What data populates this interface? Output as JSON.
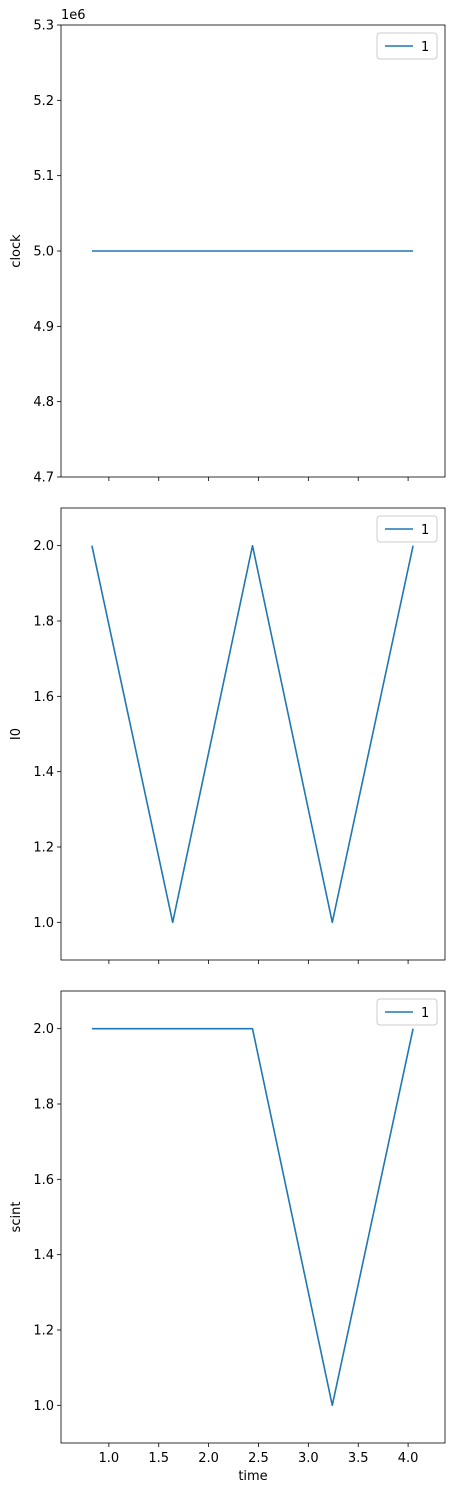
{
  "chart_data": [
    {
      "type": "line",
      "ylabel": "clock",
      "offset_text": "1e6",
      "ylim": [
        4.7,
        5.3
      ],
      "yticks": [
        "4.7",
        "4.8",
        "4.9",
        "5.0",
        "5.1",
        "5.2",
        "5.3"
      ],
      "ytick_values": [
        4.7,
        4.8,
        4.9,
        5.0,
        5.1,
        5.2,
        5.3
      ],
      "xlim": [
        0.52,
        4.37
      ],
      "xtick_values": [
        1.0,
        1.5,
        2.0,
        2.5,
        3.0,
        3.5,
        4.0
      ],
      "series": [
        {
          "name": "1",
          "color": "#1f77b4",
          "x": [
            0.83,
            1.64,
            2.44,
            3.24,
            4.05
          ],
          "y": [
            5.0,
            5.0,
            5.0,
            5.0,
            5.0
          ]
        }
      ],
      "legend": "top-right"
    },
    {
      "type": "line",
      "ylabel": "I0",
      "ylim": [
        0.9,
        2.1
      ],
      "yticks": [
        "1.0",
        "1.2",
        "1.4",
        "1.6",
        "1.8",
        "2.0"
      ],
      "ytick_values": [
        1.0,
        1.2,
        1.4,
        1.6,
        1.8,
        2.0
      ],
      "xlim": [
        0.52,
        4.37
      ],
      "xtick_values": [
        1.0,
        1.5,
        2.0,
        2.5,
        3.0,
        3.5,
        4.0
      ],
      "series": [
        {
          "name": "1",
          "color": "#1f77b4",
          "x": [
            0.83,
            1.64,
            2.44,
            3.24,
            4.05
          ],
          "y": [
            2.0,
            1.0,
            2.0,
            1.0,
            2.0
          ]
        }
      ],
      "legend": "top-right"
    },
    {
      "type": "line",
      "ylabel": "scint",
      "xlabel": "time",
      "ylim": [
        0.9,
        2.1
      ],
      "yticks": [
        "1.0",
        "1.2",
        "1.4",
        "1.6",
        "1.8",
        "2.0"
      ],
      "ytick_values": [
        1.0,
        1.2,
        1.4,
        1.6,
        1.8,
        2.0
      ],
      "xlim": [
        0.52,
        4.37
      ],
      "xticks": [
        "1.0",
        "1.5",
        "2.0",
        "2.5",
        "3.0",
        "3.5",
        "4.0"
      ],
      "xtick_values": [
        1.0,
        1.5,
        2.0,
        2.5,
        3.0,
        3.5,
        4.0
      ],
      "series": [
        {
          "name": "1",
          "color": "#1f77b4",
          "x": [
            0.83,
            1.64,
            2.44,
            3.24,
            4.05
          ],
          "y": [
            2.0,
            2.0,
            2.0,
            1.0,
            2.0
          ]
        }
      ],
      "legend": "top-right"
    }
  ]
}
